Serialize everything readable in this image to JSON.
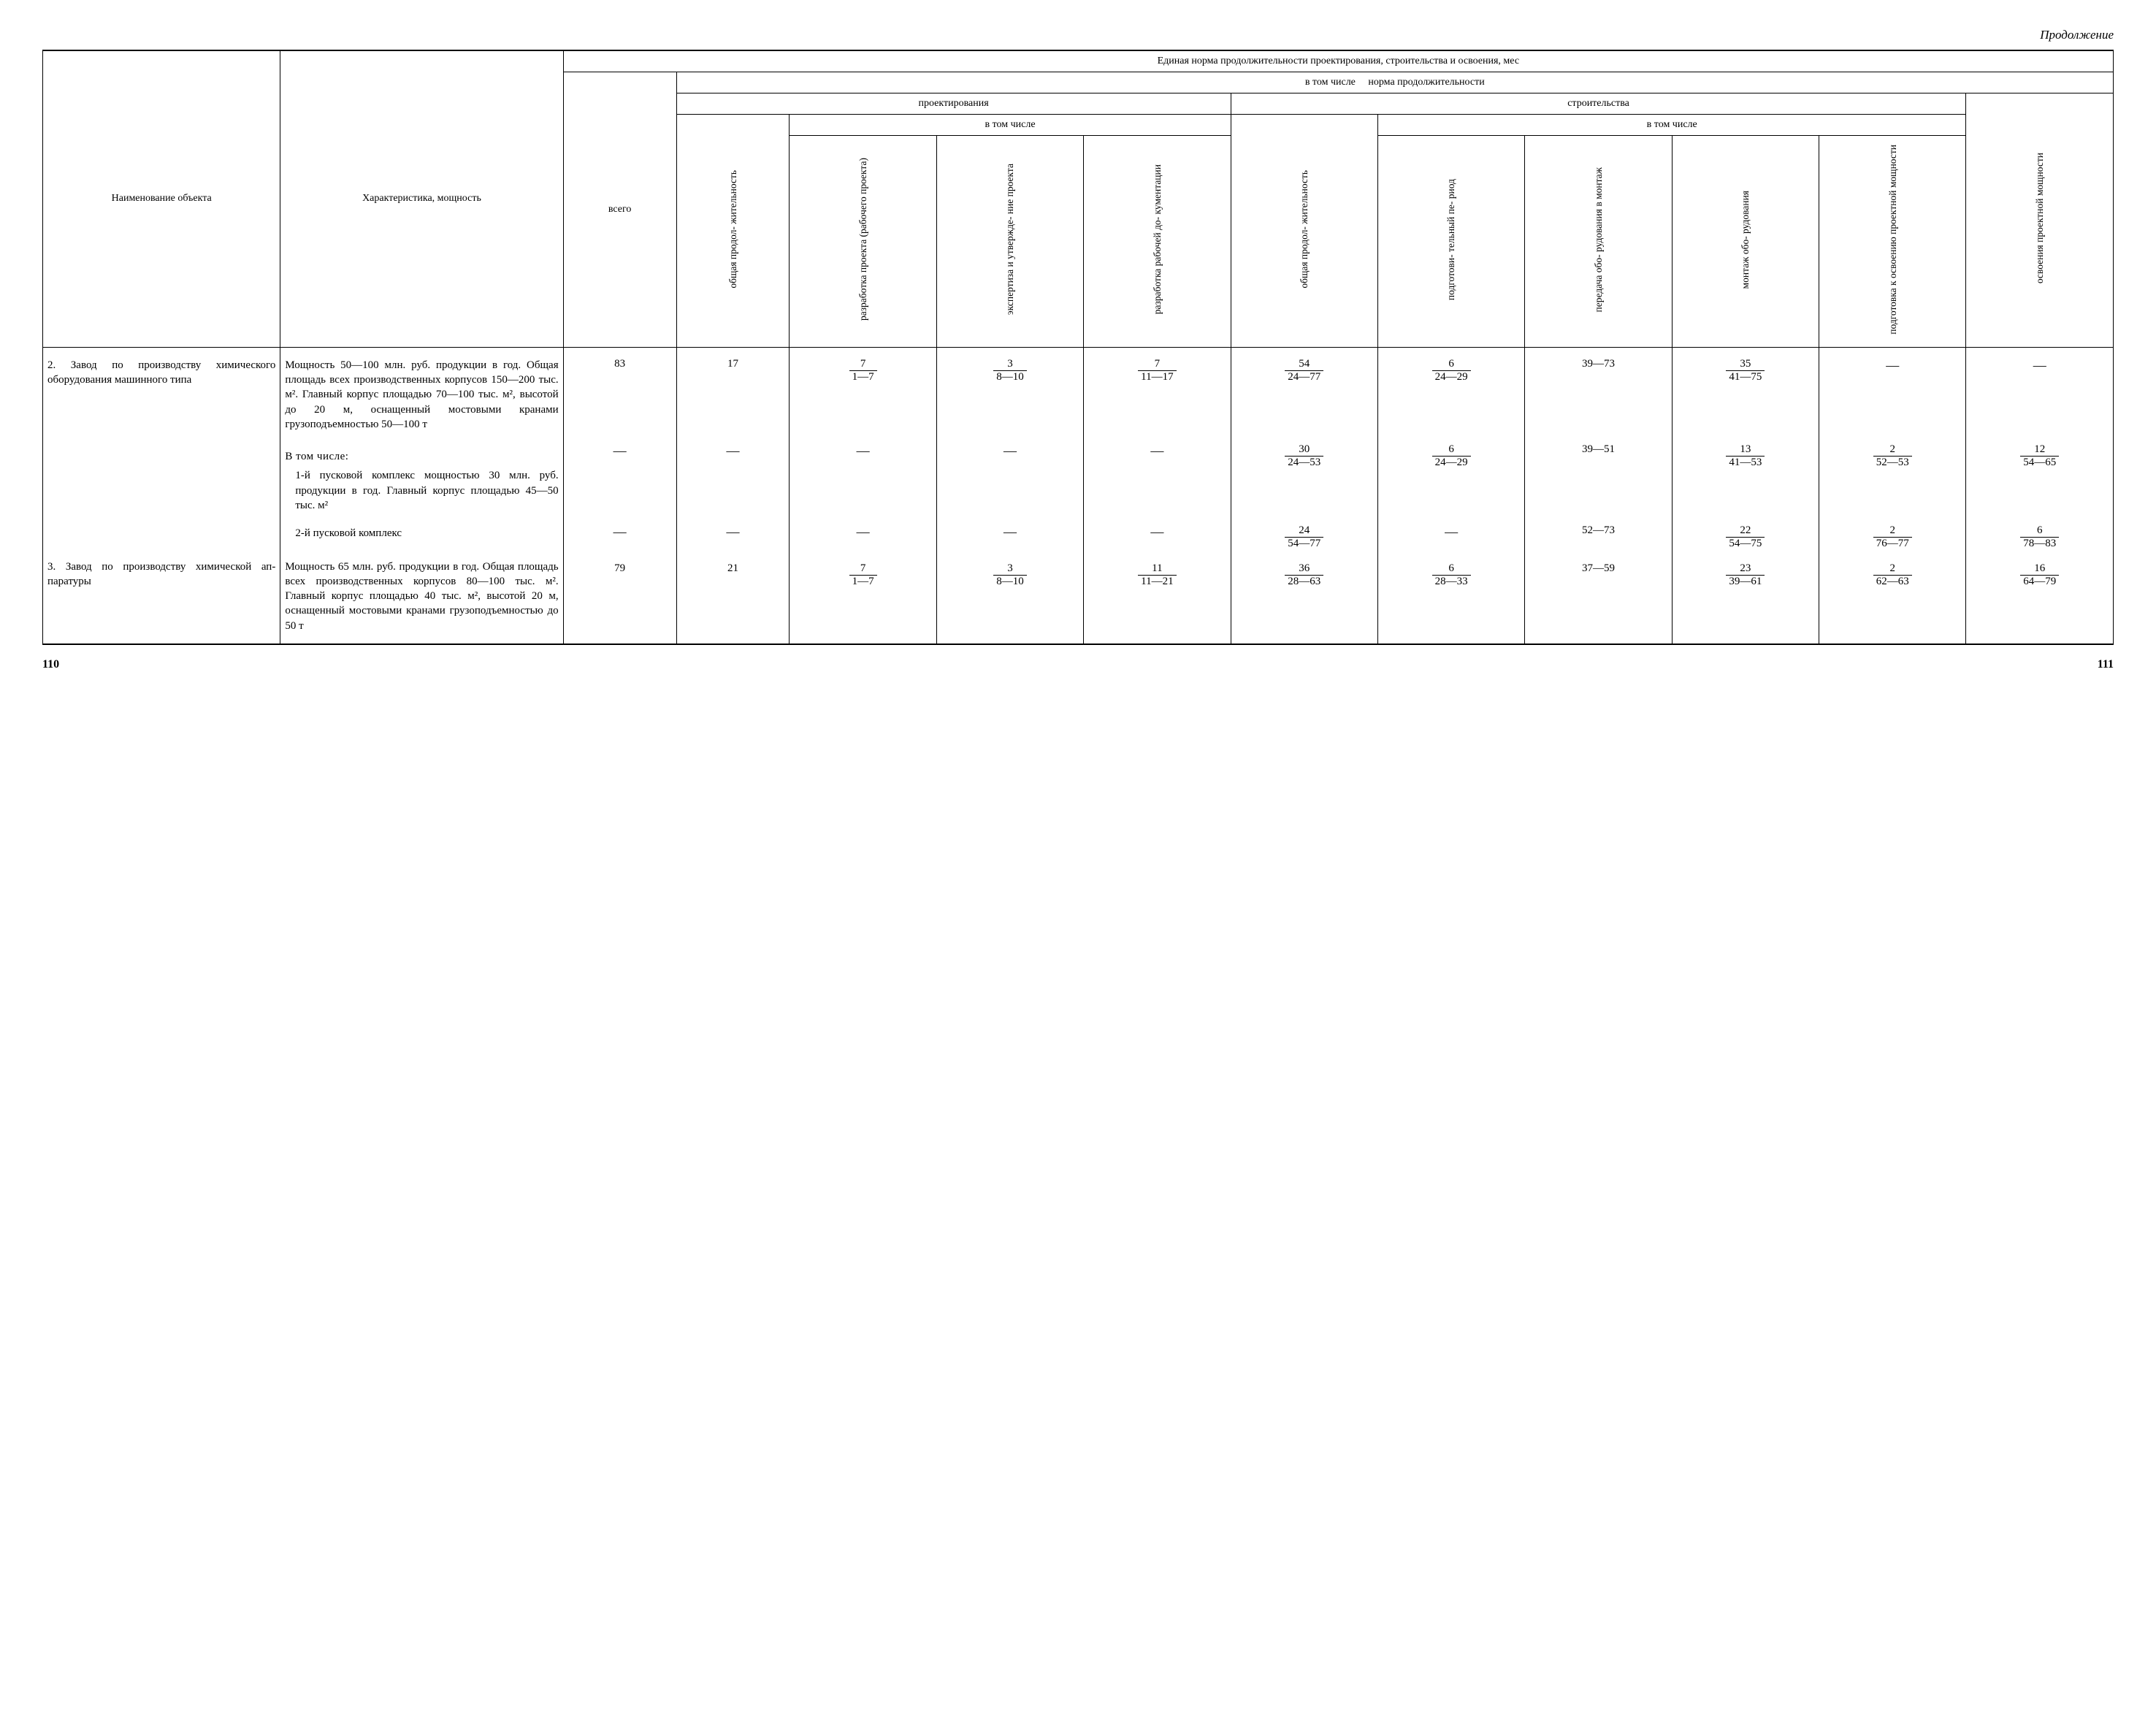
{
  "continuation": "Продолжение",
  "header": {
    "col_name": "Наименование объекта",
    "col_char": "Характеристика, мощность",
    "unified_norm": "Единая норма продолжительности проектирования, строительства и освоения, мес",
    "including_norm1": "в том числе",
    "including_norm2": "норма продолжительности",
    "total": "всего",
    "design": "проектирования",
    "construction": "строительства",
    "including": "в том числе",
    "c_design_total": "общая продол-\nжительность",
    "c_design_dev": "разработка\nпроекта\n(рабочего\nпроекта)",
    "c_design_exp": "экспертиза\nи утвержде-\nние проекта",
    "c_design_doc": "разработка\nрабочей до-\nкументации",
    "c_constr_total": "общая продол-\nжительность",
    "c_constr_prep": "подготови-\nтельный пе-\nриод",
    "c_constr_equip": "передача обо-\nрудования\nв монтаж",
    "c_constr_mount": "монтаж обо-\nрудования",
    "c_constr_ready": "подготовка\nк освоению\nпроектной\nмощности",
    "c_capacity": "освоения проектной\nмощности"
  },
  "rows": [
    {
      "name": "2. Завод по производству химического оборудования машинного ти­па",
      "char_main": "Мощность 50—100 млн. руб. про­дукции в год. Об­щая площадь всех производственных корпусов 150—200 тыс. м². Главный корпус площадью 70—100 тыс. м², высотой до 20 м, оснащенный мос­товыми кранами грузоподъемно­стью 50—100 т",
      "total": "83",
      "design_total": "17",
      "d_dev": {
        "n": "7",
        "d": "1—7"
      },
      "d_exp": {
        "n": "3",
        "d": "8—10"
      },
      "d_doc": {
        "n": "7",
        "d": "11—17"
      },
      "c_total": {
        "n": "54",
        "d": "24—77"
      },
      "c_prep": {
        "n": "6",
        "d": "24—29"
      },
      "c_equip": "39—73",
      "c_mount": {
        "n": "35",
        "d": "41—75"
      },
      "c_ready": "—",
      "capacity": "—"
    },
    {
      "char_sub_header": "В том числе:",
      "char_sub": "1-й пусковой комплекс мощ­ностью 30 млн. руб. продукции в год. Главный корпус площа­дью 45—50 тыс. м²",
      "total": "—",
      "design_total": "—",
      "d_dev": "—",
      "d_exp": "—",
      "d_doc": "—",
      "c_total": {
        "n": "30",
        "d": "24—53"
      },
      "c_prep": {
        "n": "6",
        "d": "24—29"
      },
      "c_equip": "39—51",
      "c_mount": {
        "n": "13",
        "d": "41—53"
      },
      "c_ready": {
        "n": "2",
        "d": "52—53"
      },
      "capacity": {
        "n": "12",
        "d": "54—65"
      }
    },
    {
      "char_sub": "2-й пусковой комплекс",
      "total": "—",
      "design_total": "—",
      "d_dev": "—",
      "d_exp": "—",
      "d_doc": "—",
      "c_total": {
        "n": "24",
        "d": "54—77"
      },
      "c_prep": "—",
      "c_equip": "52—73",
      "c_mount": {
        "n": "22",
        "d": "54—75"
      },
      "c_ready": {
        "n": "2",
        "d": "76—77"
      },
      "capacity": {
        "n": "6",
        "d": "78—83"
      }
    },
    {
      "name": "3. Завод по производству химической ап­паратуры",
      "char_main": "Мощность 65 млн. руб. продукции в год. Общая пло­щадь всех произ­водственных кор­пусов 80—100 тыс. м². Главный кор­пус площадью 40 тыс. м², высотой 20 м, оснащенный мостовыми крана­ми грузоподъемно­стью до 50 т",
      "total": "79",
      "design_total": "21",
      "d_dev": {
        "n": "7",
        "d": "1—7"
      },
      "d_exp": {
        "n": "3",
        "d": "8—10"
      },
      "d_doc": {
        "n": "11",
        "d": "11—21"
      },
      "c_total": {
        "n": "36",
        "d": "28—63"
      },
      "c_prep": {
        "n": "6",
        "d": "28—33"
      },
      "c_equip": "37—59",
      "c_mount": {
        "n": "23",
        "d": "39—61"
      },
      "c_ready": {
        "n": "2",
        "d": "62—63"
      },
      "capacity": {
        "n": "16",
        "d": "64—79"
      }
    }
  ],
  "page_left": "110",
  "page_right": "111",
  "style": {
    "font_family": "Times New Roman",
    "body_font_size_pt": 11,
    "header_font_size_pt": 10,
    "vertical_label_font_size_pt": 9.5,
    "border_color": "#000000",
    "background_color": "#ffffff"
  }
}
